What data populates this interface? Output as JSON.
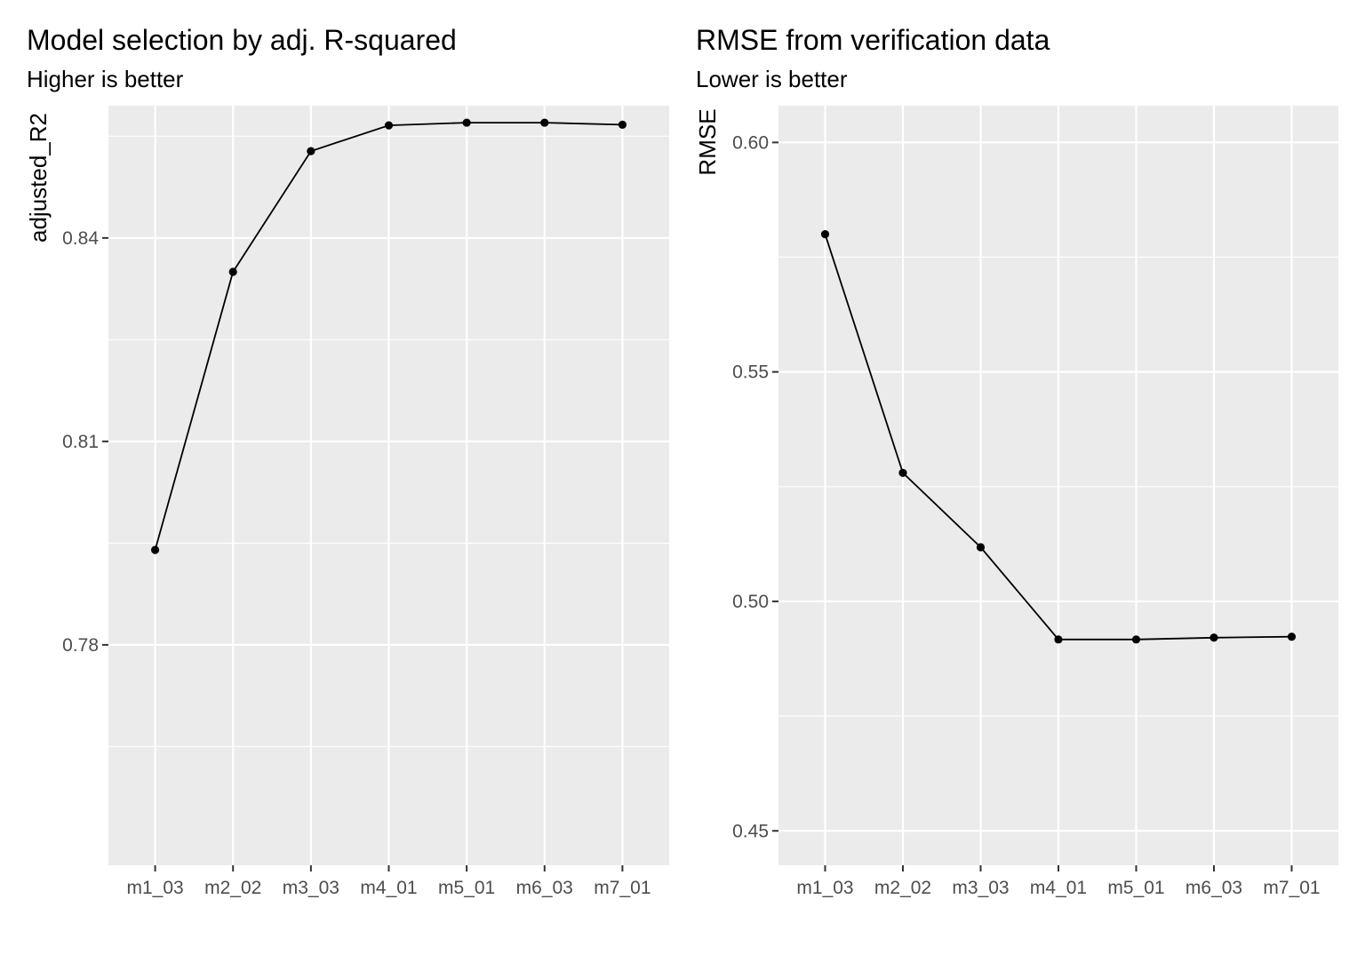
{
  "chart_data": [
    {
      "type": "line",
      "title": "Model selection by adj. R-squared",
      "subtitle": "Higher is better",
      "xlabel": "",
      "ylabel": "adjusted_R2",
      "categories": [
        "m1_03",
        "m2_02",
        "m3_03",
        "m4_01",
        "m5_01",
        "m6_03",
        "m7_01"
      ],
      "values": [
        0.794,
        0.835,
        0.8528,
        0.8566,
        0.857,
        0.857,
        0.8567
      ],
      "ylim": [
        0.7475,
        0.8595
      ],
      "yticks": [
        0.78,
        0.81,
        0.84
      ],
      "ytick_labels": [
        "0.78",
        "0.81",
        "0.84"
      ],
      "grid": true,
      "point_color": "#000000",
      "line_color": "#000000",
      "panel_color": "#ebebeb"
    },
    {
      "type": "line",
      "title": "RMSE from verification data",
      "subtitle": "Lower is better",
      "xlabel": "",
      "ylabel": "RMSE",
      "categories": [
        "m1_03",
        "m2_02",
        "m3_03",
        "m4_01",
        "m5_01",
        "m6_03",
        "m7_01"
      ],
      "values": [
        0.58,
        0.528,
        0.5118,
        0.4917,
        0.4917,
        0.4921,
        0.4923
      ],
      "ylim": [
        0.4425,
        0.608
      ],
      "yticks": [
        0.45,
        0.5,
        0.55,
        0.6
      ],
      "ytick_labels": [
        "0.45",
        "0.50",
        "0.55",
        "0.60"
      ],
      "grid": true,
      "point_color": "#000000",
      "line_color": "#000000",
      "panel_color": "#ebebeb"
    }
  ]
}
